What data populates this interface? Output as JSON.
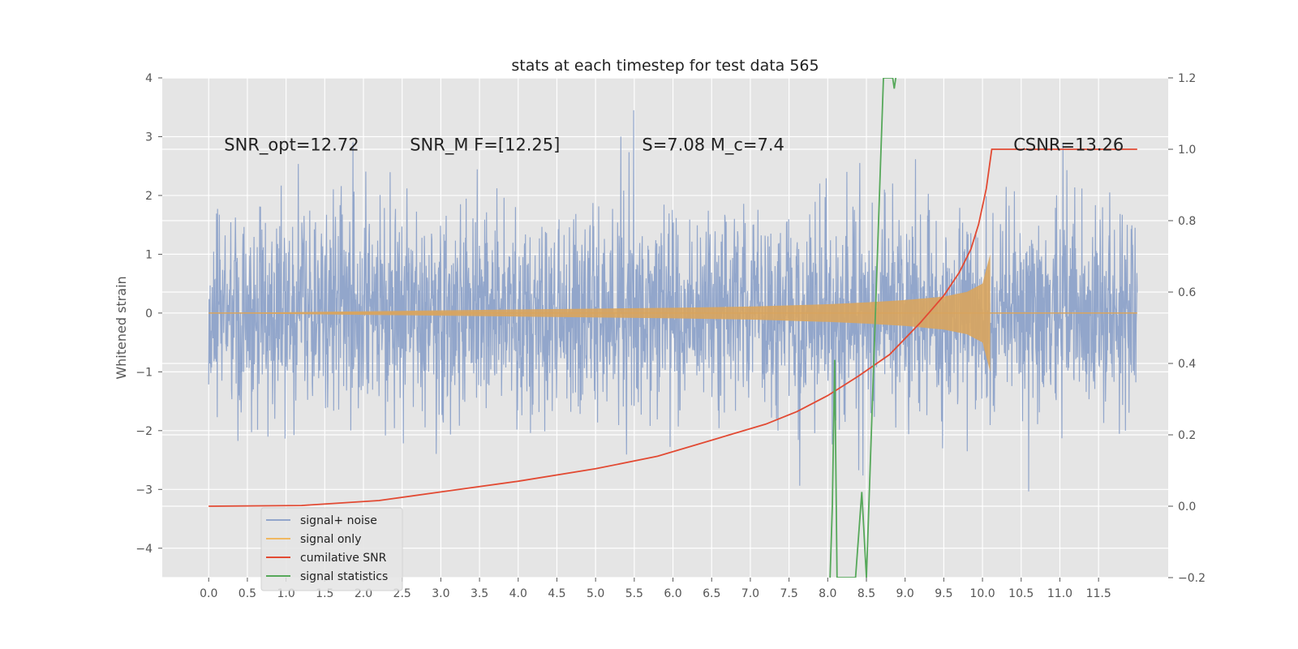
{
  "chart_data": {
    "type": "line",
    "title": "stats at each timestep for test data 565",
    "ylabel": "Whitened strain",
    "y2label": "",
    "xlim": [
      -0.6,
      12.4
    ],
    "ylim": [
      -4.5,
      4
    ],
    "y2lim": [
      -0.2,
      1.2
    ],
    "x_ticks": [
      0.0,
      0.5,
      1.0,
      1.5,
      2.0,
      2.5,
      3.0,
      3.5,
      4.0,
      4.5,
      5.0,
      5.5,
      6.0,
      6.5,
      7.0,
      7.5,
      8.0,
      8.5,
      9.0,
      9.5,
      10.0,
      10.5,
      11.0,
      11.5
    ],
    "x_tick_labels": [
      "0.0",
      "0.5",
      "1.0",
      "1.5",
      "2.0",
      "2.5",
      "3.0",
      "3.5",
      "4.0",
      "4.5",
      "5.0",
      "5.5",
      "6.0",
      "6.5",
      "7.0",
      "7.5",
      "8.0",
      "8.5",
      "9.0",
      "9.5",
      "10.0",
      "10.5",
      "11.0",
      "11.5"
    ],
    "y_ticks": [
      -4,
      -3,
      -2,
      -1,
      0,
      1,
      2,
      3,
      4
    ],
    "y_tick_labels": [
      "−4",
      "−3",
      "−2",
      "−1",
      "0",
      "1",
      "2",
      "3",
      "4"
    ],
    "y2_ticks": [
      -0.2,
      0.0,
      0.2,
      0.4,
      0.6,
      0.8,
      1.0,
      1.2
    ],
    "y2_tick_labels": [
      "−0.2",
      "0.0",
      "0.2",
      "0.4",
      "0.6",
      "0.8",
      "1.0",
      "1.2"
    ],
    "grid": true,
    "legend_position": "lower-left",
    "noise": {
      "x_range": [
        0.0,
        12.0
      ],
      "typical_band": [
        -1.6,
        1.6
      ],
      "peak_band": [
        -3.6,
        3.6
      ],
      "color": "#92a6cb"
    },
    "signal": {
      "x_end": 10.12,
      "envelope": [
        {
          "x": 0.0,
          "y": 0.0
        },
        {
          "x": 2.0,
          "y": 0.03
        },
        {
          "x": 4.0,
          "y": 0.06
        },
        {
          "x": 6.0,
          "y": 0.09
        },
        {
          "x": 7.0,
          "y": 0.11
        },
        {
          "x": 8.0,
          "y": 0.15
        },
        {
          "x": 8.5,
          "y": 0.18
        },
        {
          "x": 9.0,
          "y": 0.22
        },
        {
          "x": 9.5,
          "y": 0.28
        },
        {
          "x": 9.8,
          "y": 0.36
        },
        {
          "x": 10.0,
          "y": 0.5
        },
        {
          "x": 10.1,
          "y": 1.0
        }
      ],
      "color": "#d9a55e"
    },
    "series": [
      {
        "name": "cumilative SNR",
        "axis": "right",
        "color": "#e24a33",
        "points": [
          {
            "x": 0.0,
            "y": 0.0
          },
          {
            "x": 1.2,
            "y": 0.002
          },
          {
            "x": 2.2,
            "y": 0.016
          },
          {
            "x": 3.0,
            "y": 0.04
          },
          {
            "x": 4.0,
            "y": 0.07
          },
          {
            "x": 5.0,
            "y": 0.105
          },
          {
            "x": 5.8,
            "y": 0.14
          },
          {
            "x": 6.5,
            "y": 0.185
          },
          {
            "x": 7.2,
            "y": 0.23
          },
          {
            "x": 7.6,
            "y": 0.265
          },
          {
            "x": 8.0,
            "y": 0.31
          },
          {
            "x": 8.4,
            "y": 0.365
          },
          {
            "x": 8.8,
            "y": 0.425
          },
          {
            "x": 9.2,
            "y": 0.515
          },
          {
            "x": 9.5,
            "y": 0.59
          },
          {
            "x": 9.7,
            "y": 0.655
          },
          {
            "x": 9.85,
            "y": 0.72
          },
          {
            "x": 9.95,
            "y": 0.79
          },
          {
            "x": 10.05,
            "y": 0.89
          },
          {
            "x": 10.12,
            "y": 1.0
          },
          {
            "x": 12.0,
            "y": 1.0
          }
        ]
      },
      {
        "name": "signal statistics",
        "axis": "right",
        "color": "#56a85a",
        "points": [
          {
            "x": 8.03,
            "y": -0.2
          },
          {
            "x": 8.06,
            "y": 0.0
          },
          {
            "x": 8.09,
            "y": 0.41
          },
          {
            "x": 8.12,
            "y": -0.2
          },
          {
            "x": 8.36,
            "y": -0.2
          },
          {
            "x": 8.44,
            "y": 0.04
          },
          {
            "x": 8.5,
            "y": -0.2
          },
          {
            "x": 8.72,
            "y": 1.2
          },
          {
            "x": 8.84,
            "y": 1.2
          },
          {
            "x": 8.86,
            "y": 1.17
          },
          {
            "x": 8.88,
            "y": 1.2
          }
        ]
      }
    ],
    "legend": [
      {
        "label": "signal+ noise",
        "color": "#92a6cb"
      },
      {
        "label": "signal only",
        "color": "#f0b860"
      },
      {
        "label": "cumilative SNR",
        "color": "#e24a33"
      },
      {
        "label": "signal statistics",
        "color": "#56a85a"
      }
    ],
    "annotations": [
      {
        "text": "SNR_opt=12.72",
        "x": 0.2,
        "y": 2.85
      },
      {
        "text": "SNR_M F=[12.25]",
        "x": 2.6,
        "y": 2.85
      },
      {
        "text": "S=7.08   M_c=7.4",
        "x": 5.6,
        "y": 2.85
      },
      {
        "text": "CSNR=13.26",
        "x": 10.4,
        "y": 2.85
      }
    ]
  }
}
